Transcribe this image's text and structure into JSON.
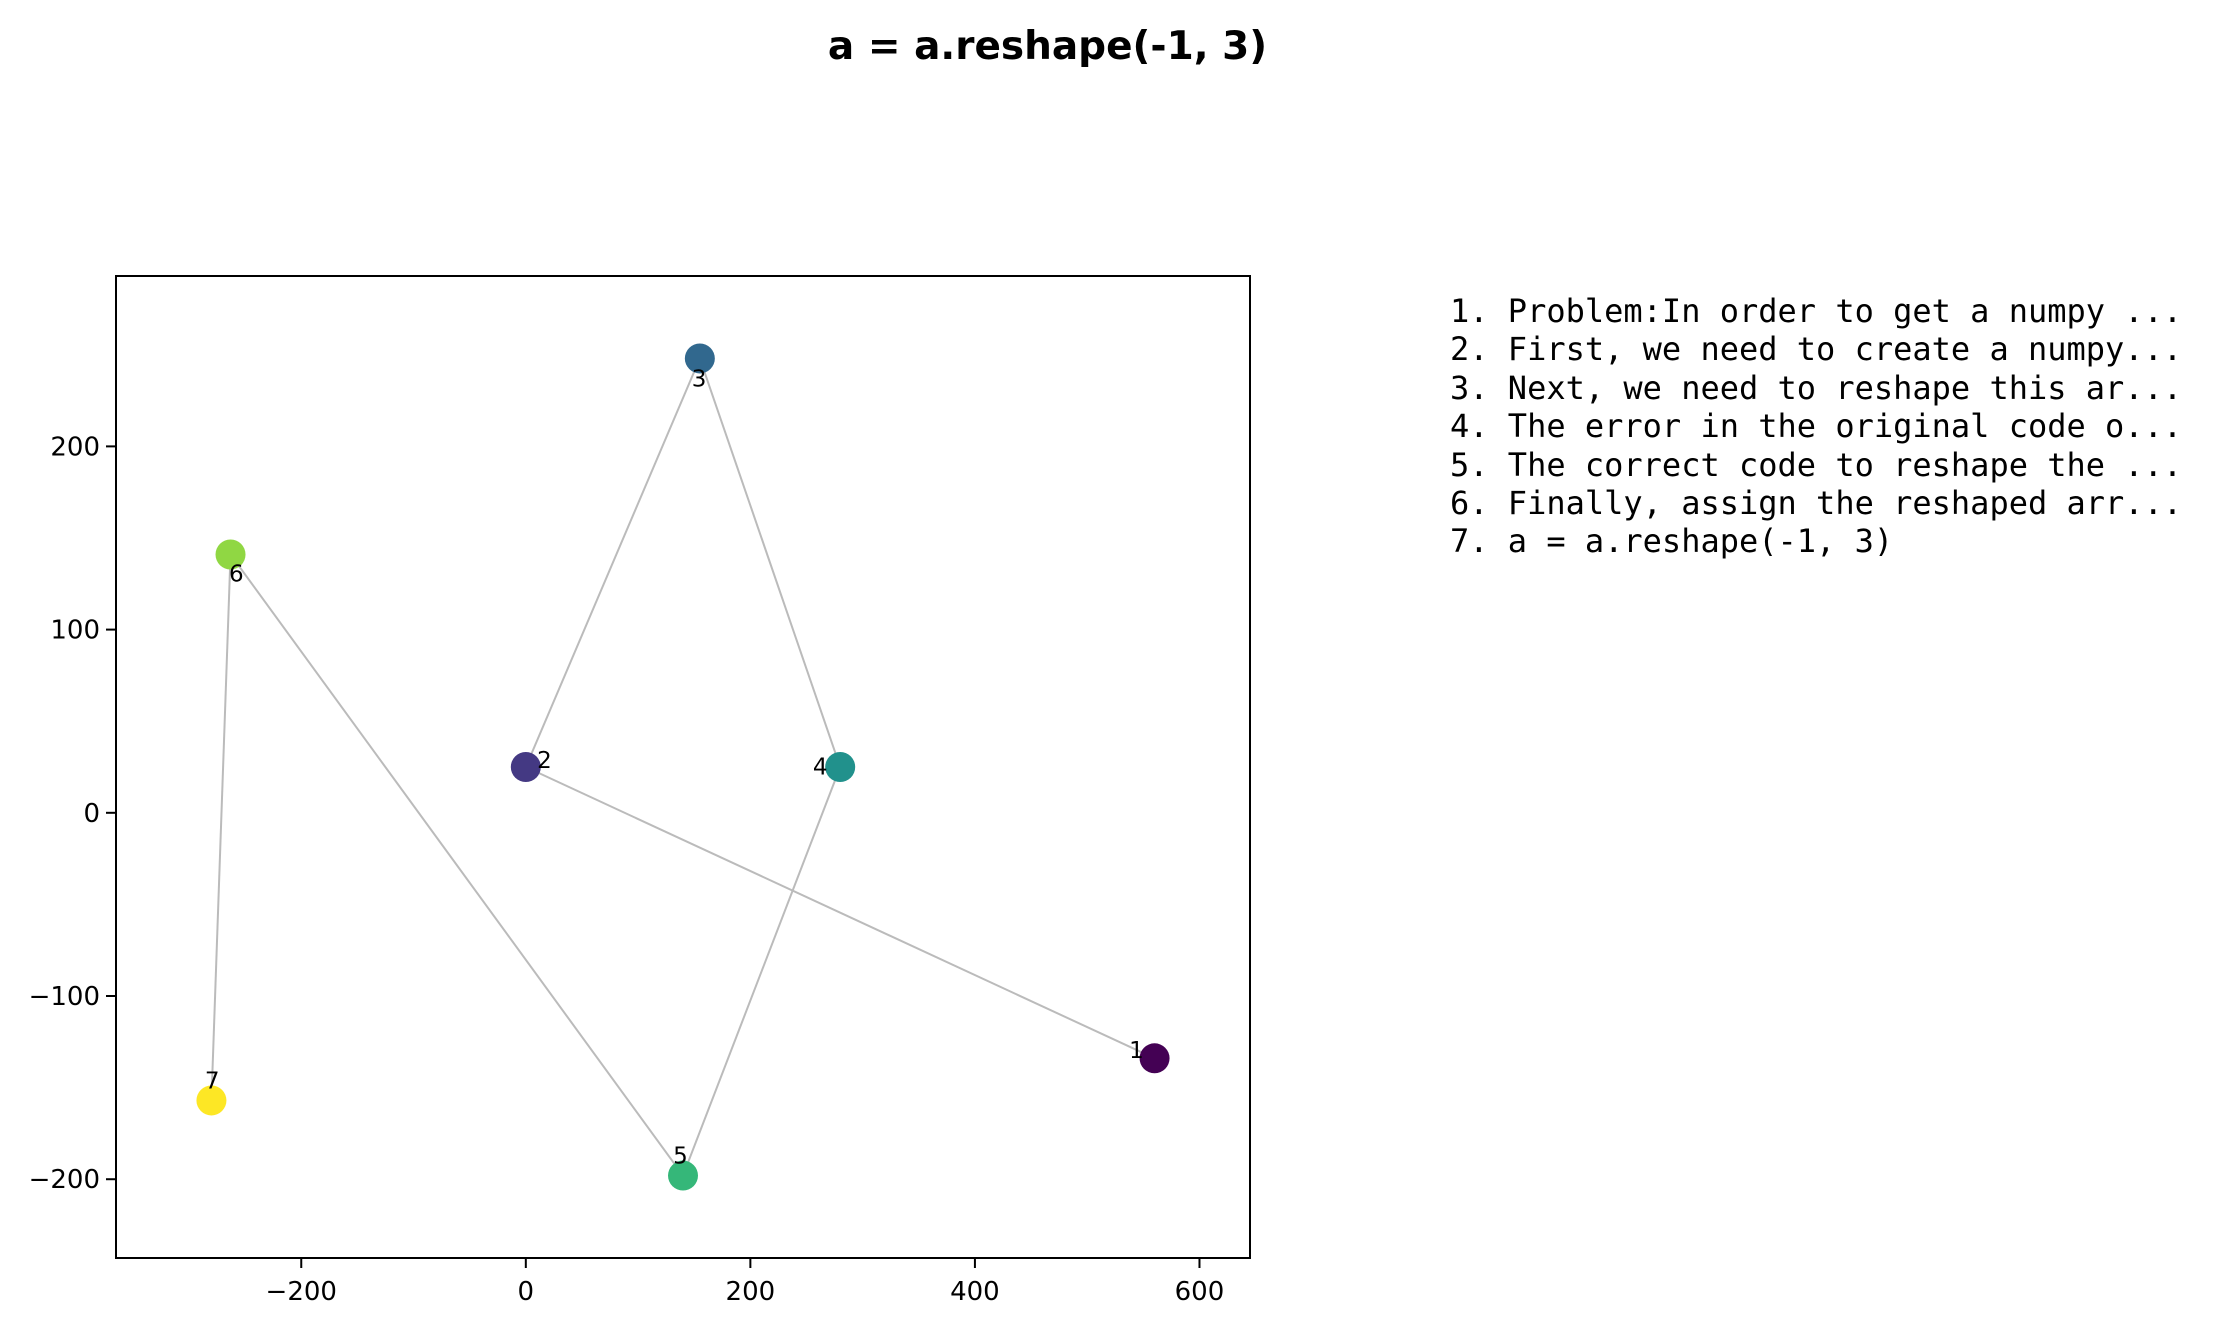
{
  "chart_data": {
    "type": "scatter",
    "title": "a = a.reshape(-1, 3)",
    "xlabel": "",
    "ylabel": "",
    "xlim": [
      -365,
      645
    ],
    "ylim": [
      -243,
      293
    ],
    "xticks": [
      -200,
      0,
      200,
      400,
      600
    ],
    "yticks": [
      -200,
      -100,
      0,
      100,
      200
    ],
    "xtick_labels": [
      "−200",
      "0",
      "200",
      "400",
      "600"
    ],
    "ytick_labels": [
      "−200",
      "−100",
      "0",
      "100",
      "200"
    ],
    "grid": false,
    "connect_in_order": true,
    "line_color": "#bbbbbb",
    "points": [
      {
        "label": "1",
        "x": 560,
        "y": -134,
        "color": "#440154"
      },
      {
        "label": "2",
        "x": 0,
        "y": 25,
        "color": "#443983"
      },
      {
        "label": "3",
        "x": 155,
        "y": 248,
        "color": "#31688e"
      },
      {
        "label": "4",
        "x": 280,
        "y": 25,
        "color": "#21918c"
      },
      {
        "label": "5",
        "x": 140,
        "y": -198,
        "color": "#35b779"
      },
      {
        "label": "6",
        "x": -263,
        "y": 141,
        "color": "#90d743"
      },
      {
        "label": "7",
        "x": -280,
        "y": -157,
        "color": "#fde725"
      }
    ]
  },
  "steps": [
    "1. Problem:In order to get a numpy ...",
    "2. First, we need to create a numpy...",
    "3. Next, we need to reshape this ar...",
    "4. The error in the original code o...",
    "5. The correct code to reshape the ...",
    "6. Finally, assign the reshaped arr...",
    "7. a = a.reshape(-1, 3)"
  ]
}
